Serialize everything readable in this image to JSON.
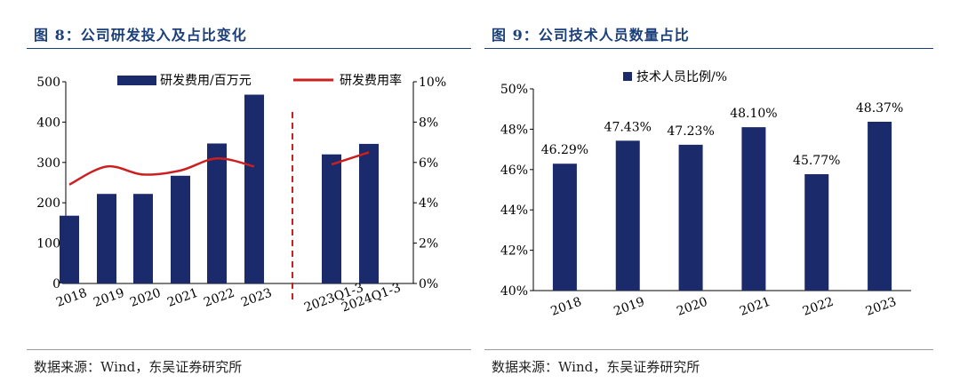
{
  "left_panel": {
    "title": "图 8：公司研发投入及占比变化",
    "source": "数据来源：Wind，东吴证券研究所"
  },
  "right_panel": {
    "title": "图 9：公司技术人员数量占比",
    "source": "数据来源：Wind，东吴证券研究所"
  },
  "colors": {
    "bar": "#1b2a6b",
    "line": "#cc1f1f",
    "title": "#1b3f7a"
  },
  "chart_data": [
    {
      "type": "bar",
      "title": "",
      "categories": [
        "2018",
        "2019",
        "2020",
        "2021",
        "2022",
        "2023",
        "2023Q1-3",
        "2024Q1-3"
      ],
      "series": [
        {
          "name": "研发费用/百万元",
          "type": "bar",
          "axis": "left",
          "values": [
            168,
            222,
            222,
            267,
            347,
            468,
            320,
            346
          ]
        },
        {
          "name": "研发费用率",
          "type": "line",
          "axis": "right",
          "unit": "%",
          "values": [
            4.9,
            5.8,
            5.4,
            5.6,
            6.2,
            5.8,
            5.9,
            6.5
          ]
        }
      ],
      "ylim": [
        0,
        500
      ],
      "y_ticks": [
        "0",
        "100",
        "200",
        "300",
        "400",
        "500"
      ],
      "y2lim": [
        0,
        10
      ],
      "y2_ticks": [
        "0%",
        "2%",
        "4%",
        "6%",
        "8%",
        "10%"
      ],
      "separator_after_category": "2023",
      "legend_position": "top"
    },
    {
      "type": "bar",
      "title": "",
      "categories": [
        "2018",
        "2019",
        "2020",
        "2021",
        "2022",
        "2023"
      ],
      "series": [
        {
          "name": "技术人员比例/%",
          "values": [
            46.29,
            47.43,
            47.23,
            48.1,
            45.77,
            48.37
          ]
        }
      ],
      "data_labels": [
        "46.29%",
        "47.43%",
        "47.23%",
        "48.10%",
        "45.77%",
        "48.37%"
      ],
      "ylim": [
        40,
        50
      ],
      "y_ticks": [
        "40%",
        "42%",
        "44%",
        "46%",
        "48%",
        "50%"
      ],
      "legend_position": "top"
    }
  ]
}
